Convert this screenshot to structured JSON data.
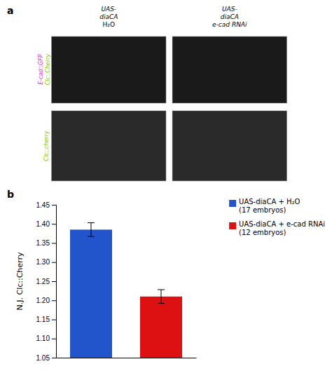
{
  "chart_data": {
    "type": "bar",
    "ylabel": "N.J. Clc::Cherry",
    "categories": [
      null,
      null
    ],
    "series": [
      {
        "name": "UAS-diaCA + H₂O\n(17 embryos)",
        "color": "#2255cc",
        "values": [
          1.385,
          null
        ],
        "errors": [
          0.018,
          null
        ]
      },
      {
        "name": "UAS-diaCA + e-cad RNAi\n(12 embryos)",
        "color": "#dd1111",
        "values": [
          null,
          1.21
        ],
        "errors": [
          null,
          0.018
        ]
      }
    ],
    "ylim": [
      1.05,
      1.45
    ],
    "yticks": [
      1.05,
      {
        "value": 1.1,
        "label": "1.10"
      },
      1.15,
      {
        "value": 1.2,
        "label": "1.20"
      },
      1.25,
      {
        "value": 1.3,
        "label": "1.30"
      },
      1.35,
      {
        "value": 1.4,
        "label": "1.40"
      },
      1.45
    ],
    "grid": false,
    "legend": "upper right",
    "annotations": [
      {
        "text": "a"
      },
      {
        "text": "UAS-"
      },
      {
        "text": "diaCA"
      },
      {
        "text": "H₂O"
      },
      {
        "text": "UAS-"
      },
      {
        "text": "diaCA"
      },
      {
        "text": "e-cad RNAi"
      },
      {
        "text": "E-cad::GFP",
        "color": "#cc44cc"
      },
      {
        "text": "Clc::Cherry",
        "color": "#88cc00"
      },
      {
        "text": "Clc::cherry",
        "color": "#88cc00"
      },
      {
        "text": "b"
      }
    ]
  }
}
